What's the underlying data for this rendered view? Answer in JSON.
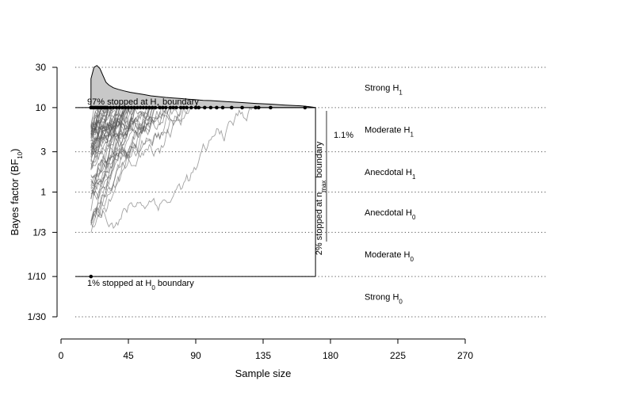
{
  "chart_data": {
    "type": "line",
    "title": "",
    "xlabel": "Sample size",
    "ylabel": "Bayes factor (BF",
    "ylabel_sub": "10",
    "ylabel_end": ")",
    "xlim": [
      0,
      270
    ],
    "ylim": [
      0.0333,
      30
    ],
    "y_scale": "log",
    "x_ticks": [
      0,
      45,
      90,
      135,
      180,
      225,
      270
    ],
    "x_tick_labels": [
      "0",
      "45",
      "90",
      "135",
      "180",
      "225",
      "270"
    ],
    "y_ticks": [
      0.03333,
      0.1,
      0.3333,
      1,
      3,
      10,
      30
    ],
    "y_tick_labels": [
      "1/30",
      "1/10",
      "1/3",
      "1",
      "3",
      "10",
      "30"
    ],
    "grid": "dotted horizontal lines at each y tick",
    "boundaries": {
      "h1": 10,
      "h0": 0.1,
      "n_min": 20,
      "n_max": 170
    },
    "annotations": {
      "h1_prefix": "97% stopped at H",
      "h1_sub": "1",
      "h1_suffix": " boundary",
      "h0_prefix": "1% stopped at H",
      "h0_sub": "0",
      "h0_suffix": " boundary",
      "nmax_prefix": "2% stopped at n",
      "nmax_sub": "max",
      "nmax_suffix": " boundary",
      "pct_right": "1.1%"
    },
    "evidence_labels": [
      {
        "text": "Strong H",
        "sub": "1",
        "y": 17.3
      },
      {
        "text": "Moderate H",
        "sub": "1",
        "y": 5.5
      },
      {
        "text": "Anecdotal H",
        "sub": "1",
        "y": 1.73
      },
      {
        "text": "Anecdotal H",
        "sub": "0",
        "y": 0.577
      },
      {
        "text": "Moderate H",
        "sub": "0",
        "y": 0.183
      },
      {
        "text": "Strong H",
        "sub": "0",
        "y": 0.058
      }
    ],
    "stop_points_h1": [
      20,
      21,
      22,
      23,
      24,
      25,
      26,
      27,
      28,
      29,
      30,
      31,
      33,
      35,
      37,
      39,
      41,
      43,
      45,
      47,
      49,
      51,
      53,
      55,
      57,
      59,
      61,
      63,
      66,
      68,
      70,
      73,
      75,
      77,
      80,
      82,
      84,
      87,
      90,
      92,
      96,
      100,
      104,
      108,
      114,
      121,
      130,
      132,
      140,
      163
    ],
    "stop_points_h0": [
      20
    ],
    "density_h1": {
      "x": [
        20,
        22,
        24,
        26,
        28,
        30,
        32,
        35,
        38,
        42,
        46,
        50,
        55,
        60,
        65,
        70,
        75,
        80,
        85,
        90,
        95,
        100,
        110,
        120,
        130,
        140,
        150,
        160,
        165,
        168,
        170
      ],
      "y": [
        22,
        30,
        31.5,
        29,
        24,
        20,
        18.5,
        17.2,
        16.5,
        15.8,
        15.2,
        14.8,
        14.3,
        13.8,
        13.5,
        13.2,
        13,
        12.8,
        12.6,
        12.4,
        12.2,
        12.1,
        11.8,
        11.5,
        11.2,
        11,
        10.7,
        10.5,
        10.3,
        10.15,
        10
      ]
    },
    "series_count": 60
  }
}
